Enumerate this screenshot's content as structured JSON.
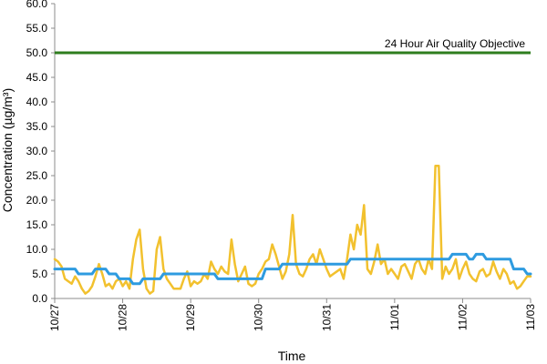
{
  "chart_data": {
    "type": "line",
    "title": "",
    "xlabel": "Time",
    "ylabel": "Concentration (µg/m³)",
    "ylim": [
      0,
      60
    ],
    "yticks": [
      "0.0",
      "5.0",
      "10.0",
      "15.0",
      "20.0",
      "25.0",
      "30.0",
      "35.0",
      "40.0",
      "45.0",
      "50.0",
      "55.0",
      "60.0"
    ],
    "xlim": [
      0,
      7
    ],
    "xticks": [
      "10/27",
      "10/28",
      "10/29",
      "10/30",
      "10/31",
      "11/01",
      "11/02",
      "11/03"
    ],
    "grid": false,
    "legend": "none",
    "colors": {
      "hourly": "#F2C12E",
      "rolling": "#2E9BE0",
      "objective": "#2E7D1E"
    },
    "objective": {
      "label": "24 Hour Air Quality Objective",
      "value": 50
    },
    "series": [
      {
        "style": "hourly",
        "x": [
          0.0,
          0.05,
          0.1,
          0.15,
          0.2,
          0.25,
          0.3,
          0.35,
          0.4,
          0.45,
          0.5,
          0.55,
          0.6,
          0.65,
          0.7,
          0.75,
          0.8,
          0.85,
          0.9,
          0.95,
          1.0,
          1.05,
          1.1,
          1.15,
          1.2,
          1.25,
          1.3,
          1.35,
          1.4,
          1.45,
          1.5,
          1.55,
          1.6,
          1.65,
          1.7,
          1.75,
          1.8,
          1.85,
          1.9,
          1.95,
          2.0,
          2.05,
          2.1,
          2.15,
          2.2,
          2.25,
          2.3,
          2.35,
          2.4,
          2.45,
          2.5,
          2.55,
          2.6,
          2.65,
          2.7,
          2.75,
          2.8,
          2.85,
          2.9,
          2.95,
          3.0,
          3.05,
          3.1,
          3.15,
          3.2,
          3.25,
          3.3,
          3.35,
          3.4,
          3.45,
          3.5,
          3.55,
          3.6,
          3.65,
          3.7,
          3.75,
          3.8,
          3.85,
          3.9,
          3.95,
          4.0,
          4.05,
          4.1,
          4.15,
          4.2,
          4.25,
          4.3,
          4.35,
          4.4,
          4.45,
          4.5,
          4.55,
          4.6,
          4.65,
          4.7,
          4.75,
          4.8,
          4.85,
          4.9,
          4.95,
          5.0,
          5.05,
          5.1,
          5.15,
          5.2,
          5.25,
          5.3,
          5.35,
          5.4,
          5.45,
          5.5,
          5.55,
          5.6,
          5.65,
          5.7,
          5.75,
          5.8,
          5.85,
          5.9,
          5.95,
          6.0,
          6.05,
          6.1,
          6.15,
          6.2,
          6.25,
          6.3,
          6.35,
          6.4,
          6.45,
          6.5,
          6.55,
          6.6,
          6.65,
          6.7,
          6.75,
          6.8,
          6.85,
          6.9,
          6.95,
          7.0
        ],
        "y": [
          8.0,
          7.5,
          6.5,
          4.0,
          3.5,
          3.0,
          4.5,
          3.5,
          2.0,
          1.0,
          1.5,
          2.5,
          4.5,
          7.0,
          5.0,
          2.5,
          3.0,
          2.0,
          3.5,
          4.0,
          2.5,
          3.5,
          2.0,
          8.0,
          12.0,
          14.0,
          6.0,
          2.0,
          1.0,
          1.5,
          10.0,
          12.5,
          6.0,
          4.0,
          3.0,
          2.0,
          2.0,
          2.0,
          4.0,
          5.5,
          2.5,
          3.5,
          3.0,
          3.5,
          5.0,
          4.0,
          7.5,
          6.0,
          5.0,
          6.5,
          5.5,
          5.0,
          12.0,
          7.0,
          3.5,
          5.0,
          6.5,
          3.0,
          2.5,
          3.0,
          5.0,
          6.0,
          7.5,
          8.0,
          11.0,
          9.0,
          6.5,
          4.0,
          5.5,
          9.0,
          17.0,
          7.0,
          5.0,
          4.5,
          6.0,
          8.0,
          9.0,
          7.0,
          10.0,
          8.0,
          6.0,
          4.5,
          5.0,
          5.5,
          6.0,
          4.0,
          8.0,
          13.0,
          10.0,
          15.0,
          13.0,
          19.0,
          6.0,
          5.0,
          7.5,
          11.0,
          7.0,
          8.0,
          5.0,
          6.0,
          5.0,
          4.0,
          6.5,
          7.0,
          5.5,
          4.0,
          7.0,
          8.0,
          6.0,
          5.0,
          8.0,
          6.0,
          27.0,
          27.0,
          4.0,
          6.5,
          5.0,
          6.0,
          8.0,
          4.0,
          6.0,
          7.5,
          5.0,
          4.0,
          3.5,
          5.5,
          6.0,
          4.5,
          5.0,
          7.5,
          5.5,
          4.0,
          6.0,
          5.0,
          3.0,
          3.5,
          2.0,
          2.5,
          3.5,
          4.5,
          4.5
        ]
      },
      {
        "style": "rolling",
        "x": [
          0.0,
          0.3,
          0.35,
          0.55,
          0.6,
          0.75,
          0.8,
          0.9,
          0.95,
          1.1,
          1.15,
          1.25,
          1.3,
          1.55,
          1.6,
          2.35,
          2.4,
          3.05,
          3.1,
          3.3,
          3.35,
          3.95,
          4.0,
          4.3,
          4.35,
          4.45,
          4.5,
          5.8,
          5.85,
          6.05,
          6.1,
          6.15,
          6.2,
          6.3,
          6.35,
          6.4,
          6.45,
          6.7,
          6.75,
          6.9,
          6.95,
          7.0
        ],
        "y": [
          6.0,
          6.0,
          5.0,
          5.0,
          6.0,
          6.0,
          5.0,
          5.0,
          4.0,
          4.0,
          3.0,
          3.0,
          4.0,
          4.0,
          5.0,
          5.0,
          4.0,
          4.0,
          6.0,
          6.0,
          7.0,
          7.0,
          7.0,
          7.0,
          8.0,
          8.0,
          8.0,
          8.0,
          9.0,
          9.0,
          8.0,
          8.0,
          9.0,
          9.0,
          8.0,
          8.0,
          8.0,
          8.0,
          6.0,
          6.0,
          5.0,
          5.0
        ]
      }
    ]
  }
}
